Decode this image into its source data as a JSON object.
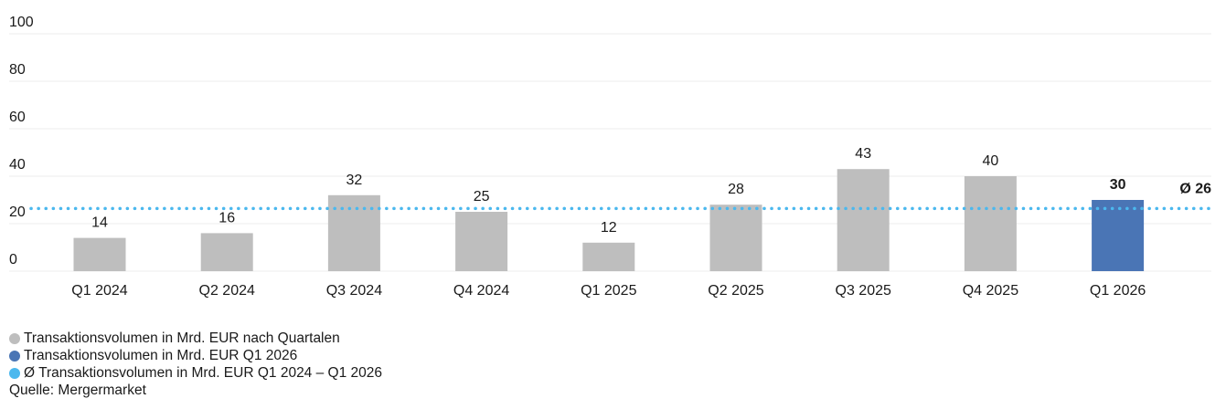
{
  "chart_data": {
    "type": "bar",
    "categories": [
      "Q1 2024",
      "Q2 2024",
      "Q3 2024",
      "Q4 2024",
      "Q1 2025",
      "Q2 2025",
      "Q3 2025",
      "Q4 2025",
      "Q1 2026"
    ],
    "values": [
      14,
      16,
      32,
      25,
      12,
      28,
      43,
      40,
      30
    ],
    "value_labels": [
      "14",
      "16",
      "32",
      "25",
      "12",
      "28",
      "43",
      "40",
      "30"
    ],
    "highlight_index": 8,
    "ylim": [
      0,
      100
    ],
    "yticks": [
      0,
      20,
      40,
      60,
      80,
      100
    ],
    "ytick_labels": [
      "0",
      "20",
      "40",
      "60",
      "80",
      "100"
    ],
    "grid": true,
    "average": {
      "value": 26,
      "label": "Ø 26"
    },
    "colors": {
      "bar": "#bebebe",
      "highlight": "#4a75b5",
      "average": "#4bb8ee",
      "grid": "#ececec"
    },
    "legend_position": "bottom-left"
  },
  "legend": {
    "items": [
      {
        "label": "Transaktionsvolumen in Mrd. EUR nach Quartalen",
        "color": "#bebebe"
      },
      {
        "label": "Transaktionsvolumen in Mrd. EUR Q1 2026",
        "color": "#4a75b5"
      },
      {
        "label": "Ø Transaktionsvolumen in Mrd. EUR Q1 2024 – Q1 2026",
        "color": "#4bb8ee"
      }
    ],
    "source": "Quelle: Mergermarket"
  }
}
